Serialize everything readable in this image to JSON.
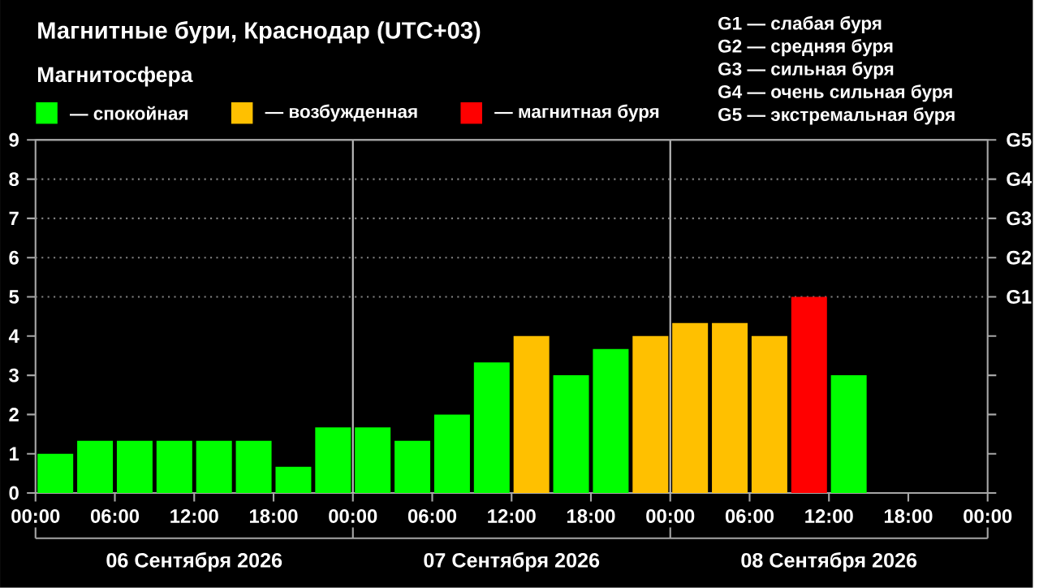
{
  "chart_data": {
    "type": "bar",
    "title": "Магнитные бури, Краснодар (UTC+03)",
    "legend_title": "Магнитосфера",
    "legend": "top",
    "x": [
      "2026-09-06T01:30",
      "2026-09-06T04:30",
      "2026-09-06T07:30",
      "2026-09-06T10:30",
      "2026-09-06T13:30",
      "2026-09-06T16:30",
      "2026-09-06T19:30",
      "2026-09-06T22:30",
      "2026-09-07T01:30",
      "2026-09-07T04:30",
      "2026-09-07T07:30",
      "2026-09-07T10:30",
      "2026-09-07T13:30",
      "2026-09-07T16:30",
      "2026-09-07T19:30",
      "2026-09-07T22:30",
      "2026-09-08T01:30",
      "2026-09-08T04:30",
      "2026-09-08T07:30",
      "2026-09-08T10:30",
      "2026-09-08T13:30"
    ],
    "series": [
      {
        "name": "— спокойная",
        "color": "#00ff00",
        "values": [
          1,
          1.33,
          1.33,
          1.33,
          1.33,
          1.33,
          0.67,
          1.67,
          1.67,
          1.33,
          2,
          3.33,
          null,
          3,
          3.67,
          null,
          null,
          null,
          null,
          null,
          3
        ]
      },
      {
        "name": "— возбужденная",
        "color": "#ffc000",
        "values": [
          null,
          null,
          null,
          null,
          null,
          null,
          null,
          null,
          null,
          null,
          null,
          null,
          4,
          null,
          null,
          4,
          4.33,
          4.33,
          4,
          null,
          null
        ]
      },
      {
        "name": "— магнитная буря",
        "color": "#ff0000",
        "values": [
          null,
          null,
          null,
          null,
          null,
          null,
          null,
          null,
          null,
          null,
          null,
          null,
          null,
          null,
          null,
          null,
          null,
          null,
          null,
          5,
          null
        ]
      }
    ],
    "xlim": [
      "2026-09-06T00:00",
      "2026-09-09T00:00"
    ],
    "xticks": [
      {
        "value": "2026-09-06T00:00",
        "label": "00:00"
      },
      {
        "value": "2026-09-06T06:00",
        "label": "06:00"
      },
      {
        "value": "2026-09-06T12:00",
        "label": "12:00"
      },
      {
        "value": "2026-09-06T18:00",
        "label": "18:00"
      },
      {
        "value": "2026-09-07T00:00",
        "label": "00:00"
      },
      {
        "value": "2026-09-07T06:00",
        "label": "06:00"
      },
      {
        "value": "2026-09-07T12:00",
        "label": "12:00"
      },
      {
        "value": "2026-09-07T18:00",
        "label": "18:00"
      },
      {
        "value": "2026-09-08T00:00",
        "label": "00:00"
      },
      {
        "value": "2026-09-08T06:00",
        "label": "06:00"
      },
      {
        "value": "2026-09-08T12:00",
        "label": "12:00"
      },
      {
        "value": "2026-09-08T18:00",
        "label": "18:00"
      },
      {
        "value": "2026-09-09T00:00",
        "label": "00:00"
      }
    ],
    "ylim": [
      0,
      9
    ],
    "yticks": [
      0,
      1,
      2,
      3,
      4,
      5,
      6,
      7,
      8,
      9
    ],
    "ref_lines": [
      {
        "axis": "x",
        "value": "2026-09-07T00:00",
        "color": "#c0c0c0",
        "line_style": "solid"
      },
      {
        "axis": "x",
        "value": "2026-09-08T00:00",
        "color": "#c0c0c0",
        "line_style": "solid"
      },
      {
        "axis": "y",
        "value": 5,
        "label": "G1",
        "color": "#808080",
        "line_style": "dotted"
      },
      {
        "axis": "y",
        "value": 6,
        "label": "G2",
        "color": "#808080",
        "line_style": "dotted"
      },
      {
        "axis": "y",
        "value": 7,
        "label": "G3",
        "color": "#808080",
        "line_style": "dotted"
      },
      {
        "axis": "y",
        "value": 8,
        "label": "G4",
        "color": "#808080",
        "line_style": "dotted"
      },
      {
        "axis": "y",
        "value": 9,
        "label": "G5",
        "color": "#a6a6a6",
        "line_style": "solid"
      }
    ],
    "annotations": [
      "G1 — слабая буря",
      "G2 — средняя буря",
      "G3 — сильная буря",
      "G4 — очень сильная буря",
      "G5 — экстремальная буря",
      "06 Сентября 2026",
      "07 Сентября 2026",
      "08 Сентября 2026"
    ]
  }
}
